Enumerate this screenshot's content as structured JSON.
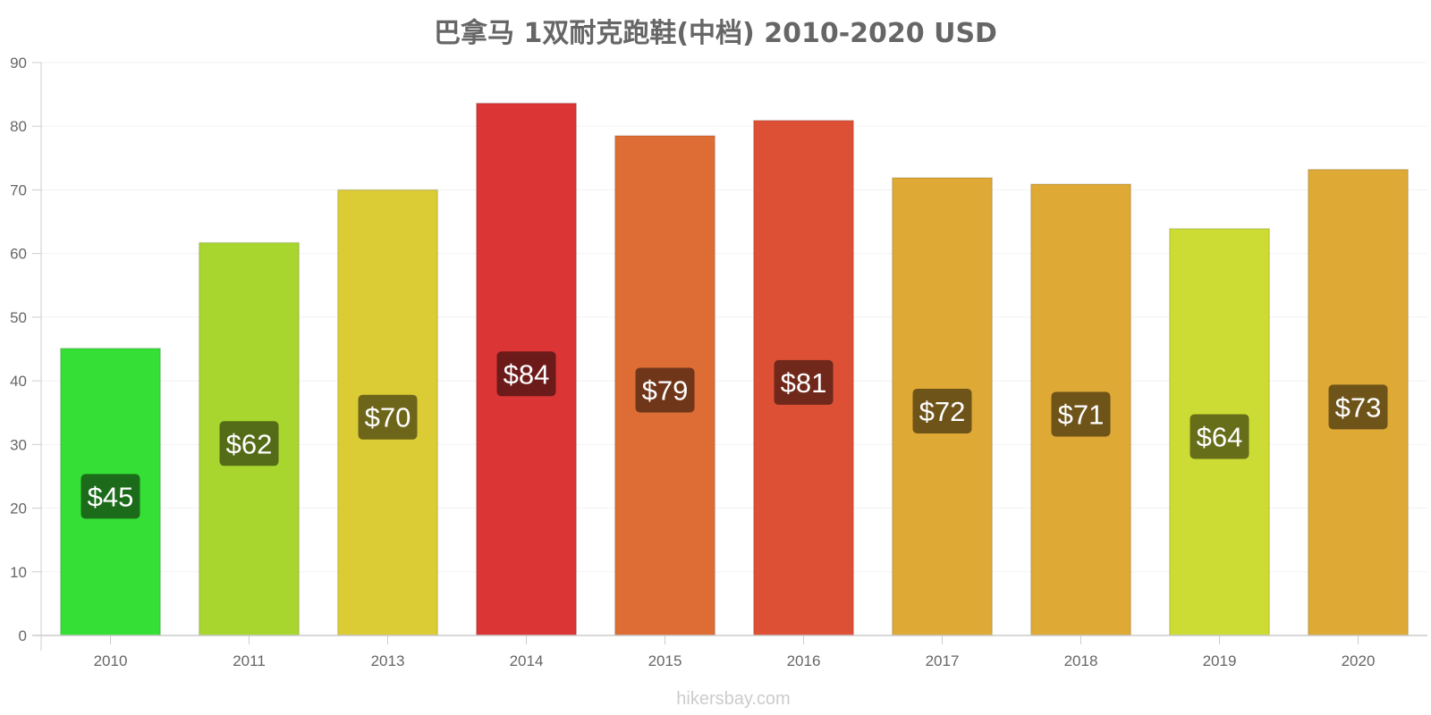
{
  "watermark": "hikersbay.com",
  "chart_data": {
    "type": "bar",
    "title": "巴拿马 1双耐克跑鞋(中档) 2010-2020 USD",
    "xlabel": "",
    "ylabel": "",
    "ylim": [
      0,
      90
    ],
    "yticks": [
      0,
      10,
      20,
      30,
      40,
      50,
      60,
      70,
      80,
      90
    ],
    "grid": true,
    "categories": [
      "2010",
      "2011",
      "2013",
      "2014",
      "2015",
      "2016",
      "2017",
      "2018",
      "2019",
      "2020"
    ],
    "values": [
      45.1,
      61.7,
      70.0,
      83.6,
      78.5,
      80.9,
      71.9,
      70.9,
      63.9,
      73.2
    ],
    "data_labels": [
      "$45",
      "$62",
      "$70",
      "$84",
      "$79",
      "$81",
      "$72",
      "$71",
      "$64",
      "$73"
    ],
    "bar_colors": [
      "#35df35",
      "#a8d62f",
      "#dbcb35",
      "#db3535",
      "#de6d35",
      "#de5035",
      "#dea935",
      "#dea935",
      "#ccdc35",
      "#dea935"
    ],
    "label_colors": [
      "#1b6b1b",
      "#546b17",
      "#6d661a",
      "#6d1a1a",
      "#6f361a",
      "#6f281a",
      "#6f541a",
      "#6f541a",
      "#666e1a",
      "#6f541a"
    ]
  }
}
